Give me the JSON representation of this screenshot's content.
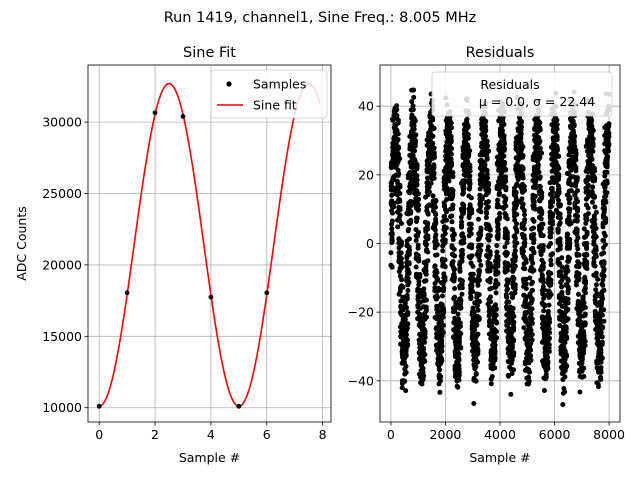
{
  "figure": {
    "suptitle": "Run 1419, channel1, Sine Freq.: 8.005 MHz"
  },
  "chart_data": [
    {
      "type": "scatter",
      "title": "Sine Fit",
      "xlabel": "Sample #",
      "ylabel": "ADC Counts",
      "xlim": [
        -0.4,
        8.3
      ],
      "ylim": [
        9000,
        34000
      ],
      "xticks": [
        0,
        2,
        4,
        6,
        8
      ],
      "xtick_labels": [
        "0",
        "2",
        "4",
        "6",
        "8"
      ],
      "yticks": [
        10000,
        15000,
        20000,
        25000,
        30000
      ],
      "ytick_labels": [
        "10000",
        "15000",
        "20000",
        "25000",
        "30000"
      ],
      "grid": true,
      "legend_position": "top-right",
      "series": [
        {
          "name": "Samples",
          "kind": "points",
          "color": "#000000",
          "x": [
            0,
            1,
            2,
            3,
            4,
            5,
            6
          ],
          "y": [
            10100,
            18050,
            30650,
            30400,
            17750,
            10100,
            18050
          ]
        },
        {
          "name": "Sine fit",
          "kind": "line",
          "color": "#ff0000",
          "model": "offset + amplitude*sin(2*pi*x/period + phase)",
          "offset": 21400,
          "amplitude": 11300,
          "period": 5.0,
          "phase": -1.5708,
          "x_range": [
            0,
            7.9
          ]
        }
      ]
    },
    {
      "type": "scatter",
      "title": "Residuals",
      "xlabel": "Sample #",
      "xlim": [
        -400,
        8400
      ],
      "ylim": [
        -52,
        52
      ],
      "xticks": [
        0,
        2000,
        4000,
        6000,
        8000
      ],
      "xtick_labels": [
        "0",
        "2000",
        "4000",
        "6000",
        "8000"
      ],
      "yticks": [
        -40,
        -20,
        0,
        20,
        40
      ],
      "ytick_labels": [
        "−40",
        "−20",
        "0",
        "20",
        "40"
      ],
      "grid": true,
      "legend_position": "top-right",
      "series": [
        {
          "name": "Residuals",
          "stats": "μ = 0.0, σ = 22.44",
          "color": "#000000",
          "n_points": 8000,
          "pattern_period": 650,
          "amplitude": 33,
          "noise": 5
        }
      ]
    }
  ]
}
